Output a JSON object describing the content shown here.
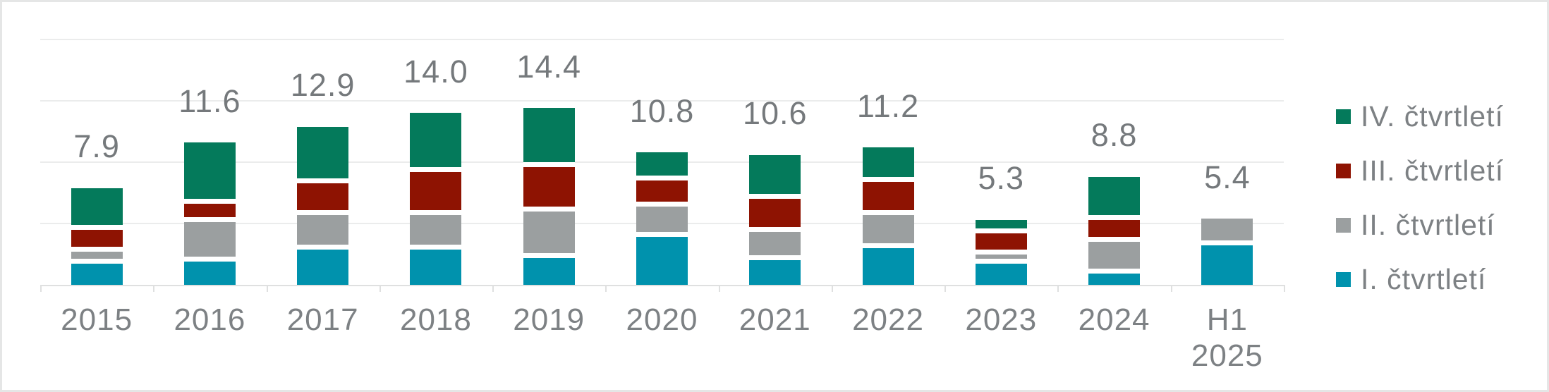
{
  "chart_data": {
    "type": "bar",
    "stacked": true,
    "title": "",
    "categories": [
      "2015",
      "2016",
      "2017",
      "2018",
      "2019",
      "2020",
      "2021",
      "2022",
      "2023",
      "2024",
      "H1 2025"
    ],
    "series": [
      {
        "name": "I. čtvrtletí",
        "color": "#0092ad",
        "values": [
          1.7,
          1.9,
          2.9,
          2.9,
          2.2,
          3.9,
          2.0,
          3.0,
          1.7,
          0.9,
          3.2
        ]
      },
      {
        "name": "II. čtvrtletí",
        "color": "#9b9fa0",
        "values": [
          1.0,
          3.2,
          2.8,
          2.8,
          3.8,
          2.5,
          2.3,
          2.7,
          0.8,
          2.6,
          2.2
        ]
      },
      {
        "name": "III. čtvrtletí",
        "color": "#8e1302",
        "values": [
          1.8,
          1.5,
          2.6,
          3.5,
          3.6,
          2.1,
          2.7,
          2.7,
          1.7,
          1.8,
          0
        ]
      },
      {
        "name": "IV. čtvrtletí",
        "color": "#047a5b",
        "values": [
          3.4,
          5.0,
          4.6,
          4.8,
          4.8,
          2.3,
          3.6,
          2.8,
          1.1,
          3.5,
          0
        ]
      }
    ],
    "totals": [
      "7.9",
      "11.6",
      "12.9",
      "14.0",
      "14.4",
      "10.8",
      "10.6",
      "11.2",
      "5.3",
      "8.8",
      "5.4"
    ],
    "xlabel": "",
    "ylabel": "",
    "ylim": [
      0,
      20
    ],
    "gridline_step": 5,
    "grid": true,
    "y_axis_labels_shown": false,
    "value_labels_shown": true,
    "legend_position": "right",
    "legend_order": [
      "IV. čtvrtletí",
      "III. čtvrtletí",
      "II. čtvrtletí",
      "I. čtvrtletí"
    ]
  },
  "colors": {
    "background": "#ffffff",
    "frame_border": "#e5e6e6",
    "gridline": "#ebecec",
    "axis_line": "#dfe0e0",
    "total_label_text": "#75797c",
    "axis_label_text": "#7d8184",
    "segment_gap": "#ffffff"
  }
}
